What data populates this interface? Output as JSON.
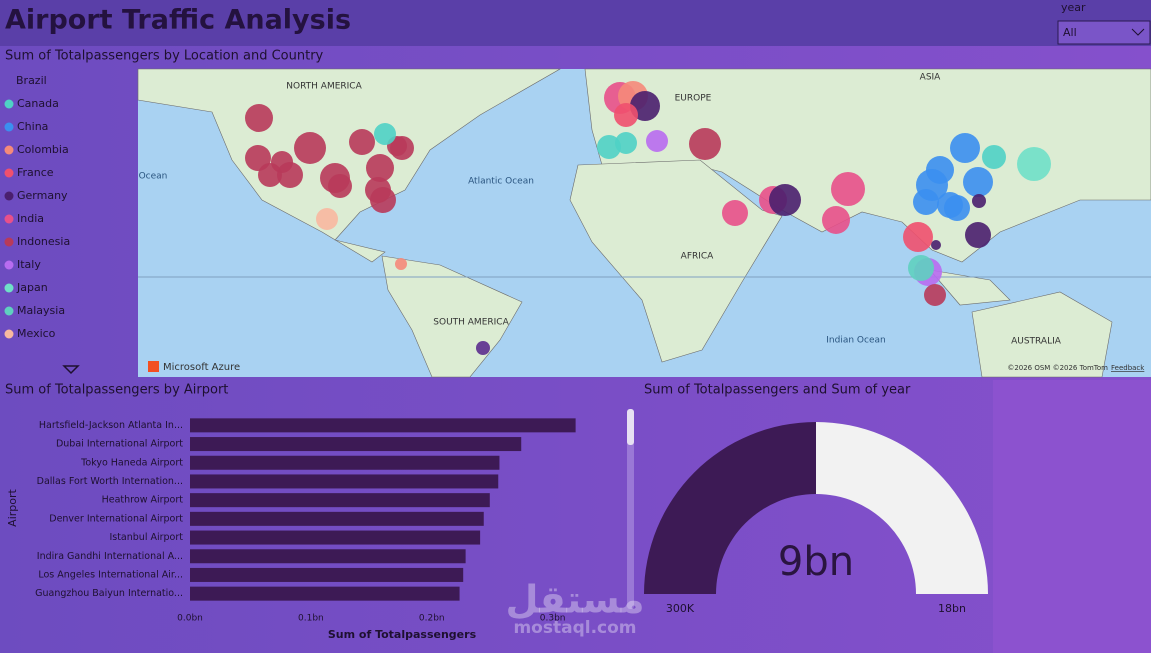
{
  "header": {
    "title": "Airport Traffic Analysis"
  },
  "slicer": {
    "label": "year",
    "value": "All"
  },
  "chart_data": [
    {
      "type": "map",
      "title": "Sum of Totalpassengers by Location and Country",
      "legend": [
        {
          "name": "Brazil",
          "color": "#5b2d8e"
        },
        {
          "name": "Canada",
          "color": "#4fd1c5"
        },
        {
          "name": "China",
          "color": "#3b8ff0"
        },
        {
          "name": "Colombia",
          "color": "#f58a7a"
        },
        {
          "name": "France",
          "color": "#f0506e"
        },
        {
          "name": "Germany",
          "color": "#4a1f6e"
        },
        {
          "name": "India",
          "color": "#e8508a"
        },
        {
          "name": "Indonesia",
          "color": "#b83a5a"
        },
        {
          "name": "Italy",
          "color": "#b86cf0"
        },
        {
          "name": "Japan",
          "color": "#6fe0c8"
        },
        {
          "name": "Malaysia",
          "color": "#5fd0c0"
        },
        {
          "name": "Mexico",
          "color": "#f8b8a0"
        }
      ],
      "labels": [
        "NORTH AMERICA",
        "EUROPE",
        "ASIA",
        "Atlantic Ocean",
        "AFRICA",
        "SOUTH AMERICA",
        "Indian Ocean",
        "AUSTRALIA",
        "Ocean"
      ],
      "attribution": "Microsoft Azure",
      "copyright": "©2026 OSM ©2026 TomTom",
      "feedback": "Feedback"
    },
    {
      "type": "bar",
      "title": "Sum of Totalpassengers by Airport",
      "categories": [
        "Hartsfield-Jackson Atlanta In...",
        "Dubai International Airport",
        "Tokyo Haneda Airport",
        "Dallas Fort Worth Internation...",
        "Heathrow Airport",
        "Denver International Airport",
        "Istanbul Airport",
        "Indira Gandhi International A...",
        "Los Angeles International Air...",
        "Guangzhou Baiyun Internatio..."
      ],
      "values": [
        0.319,
        0.274,
        0.256,
        0.255,
        0.248,
        0.243,
        0.24,
        0.228,
        0.226,
        0.223
      ],
      "color": "#3d1a55",
      "xlim": [
        0,
        0.34
      ],
      "xticks": [
        {
          "value": 0,
          "label": "0.0bn"
        },
        {
          "value": 0.1,
          "label": "0.1bn"
        },
        {
          "value": 0.2,
          "label": "0.2bn"
        },
        {
          "value": 0.3,
          "label": "0.3bn"
        }
      ],
      "xlabel": "Sum of Totalpassengers",
      "ylabel": "Airport"
    },
    {
      "type": "gauge",
      "title": "Sum of Totalpassengers and Sum of year",
      "values": [
        9
      ],
      "value_labels": [
        "9bn"
      ],
      "ylim": [
        0.0003,
        18
      ],
      "yticks": [
        {
          "value": 0.0003,
          "label": "300K"
        },
        {
          "value": 18,
          "label": "18bn"
        }
      ],
      "color": "#3d1a55",
      "track_color": "#f2f2f2"
    }
  ],
  "watermark": {
    "arabic": "مستقل",
    "latin": "mostaql.com"
  }
}
